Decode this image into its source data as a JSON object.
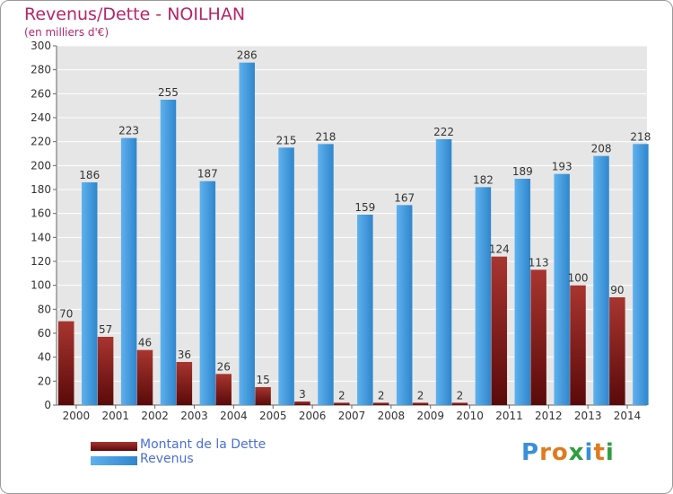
{
  "header": {
    "title": "Revenus/Dette - NOILHAN",
    "subtitle": "(en milliers d'€)"
  },
  "legend": {
    "debt_label": "Montant de la Dette",
    "revenue_label": "Revenus"
  },
  "logo": {
    "letters": [
      "P",
      "r",
      "o",
      "x",
      "i",
      "t",
      "i"
    ],
    "colors": [
      "#3a8fd8",
      "#e07a1f",
      "#e07a1f",
      "#2f9e3f",
      "#3a8fd8",
      "#e07a1f",
      "#2f9e3f"
    ]
  },
  "chart_data": {
    "type": "bar",
    "title": "Revenus/Dette - NOILHAN",
    "subtitle": "(en milliers d'€)",
    "categories": [
      "2000",
      "2001",
      "2002",
      "2003",
      "2004",
      "2005",
      "2006",
      "2007",
      "2008",
      "2009",
      "2010",
      "2011",
      "2012",
      "2013",
      "2014"
    ],
    "series": [
      {
        "name": "Montant de la Dette",
        "color": "#8b1a1a",
        "values": [
          70,
          57,
          46,
          36,
          26,
          15,
          3,
          2,
          2,
          2,
          2,
          124,
          113,
          100,
          90
        ]
      },
      {
        "name": "Revenus",
        "color": "#3a9ae0",
        "values": [
          186,
          223,
          255,
          187,
          286,
          215,
          218,
          159,
          167,
          222,
          182,
          189,
          193,
          208,
          218
        ]
      }
    ],
    "ylim": [
      0,
      300
    ],
    "yticks": [
      0,
      20,
      40,
      60,
      80,
      100,
      120,
      140,
      160,
      180,
      200,
      220,
      240,
      260,
      280,
      300
    ],
    "grid": true,
    "legend_position": "bottom-left"
  }
}
